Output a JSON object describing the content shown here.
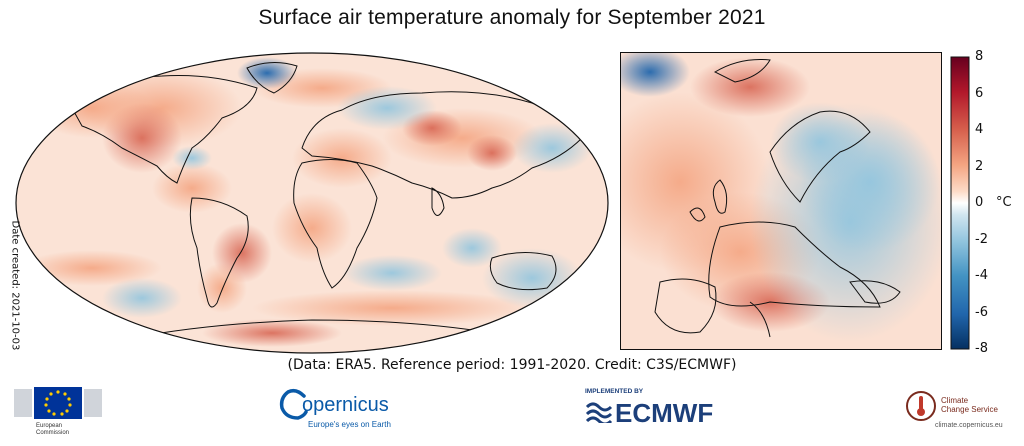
{
  "title": "Surface air temperature anomaly for September 2021",
  "date_created": "Date created: 2021-10-03",
  "caption": "(Data: ERA5.  Reference period: 1991-2020.  Credit: C3S/ECMWF)",
  "colorbar": {
    "ticks": [
      "8",
      "6",
      "4",
      "2",
      "0",
      "-2",
      "-4",
      "-6",
      "-8"
    ],
    "unit": "°C",
    "range": [
      -8,
      8
    ],
    "colors": {
      "hot": "#a50f15",
      "warm": "#f4a582",
      "neutral": "#ffffff",
      "cool": "#92c5de",
      "cold": "#08306b"
    }
  },
  "logos": {
    "ec": {
      "line1": "European",
      "line2": "Commission"
    },
    "copernicus": {
      "name": "opernicus",
      "tagline": "Europe's eyes on Earth"
    },
    "ecmwf": {
      "implemented": "IMPLEMENTED BY",
      "name": "ECMWF"
    },
    "c3s": {
      "line1": "Climate",
      "line2": "Change Service",
      "url": "climate.copernicus.eu"
    }
  }
}
